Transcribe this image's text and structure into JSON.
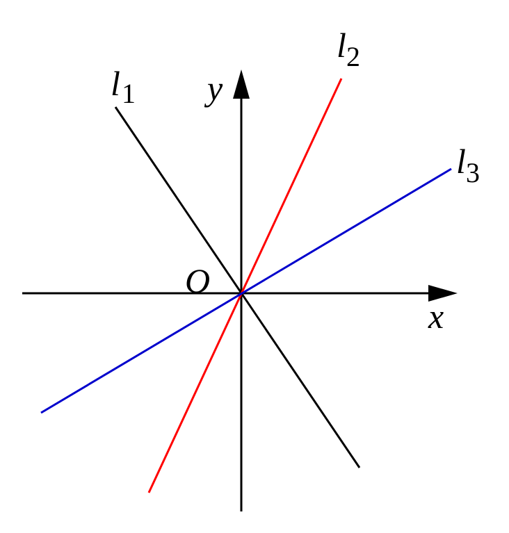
{
  "axes": {
    "x_label": "x",
    "y_label": "y",
    "origin_label": "O"
  },
  "lines": [
    {
      "letter": "l",
      "subscript": "1",
      "color": "#000000"
    },
    {
      "letter": "l",
      "subscript": "2",
      "color": "#ff0000"
    },
    {
      "letter": "l",
      "subscript": "3",
      "color": "#0000cc"
    }
  ]
}
